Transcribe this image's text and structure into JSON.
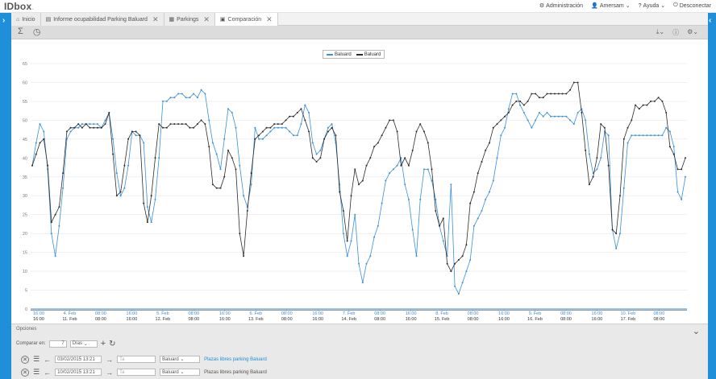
{
  "app": {
    "logo": "IDbox",
    "logo_sub": "."
  },
  "topnav": {
    "admin": "Administración",
    "user": "Amersam",
    "help": "Ayuda",
    "logout": "Desconectar"
  },
  "tabs": [
    {
      "label": "Inicio",
      "icon": "home-icon"
    },
    {
      "label": "Informe ocupabilidad Parking Baluard",
      "icon": "report-icon"
    },
    {
      "label": "Parkings",
      "icon": "grid-icon"
    },
    {
      "label": "Comparación",
      "icon": "chart-icon"
    }
  ],
  "toolbar": {
    "sum": "Σ",
    "clock": "◷",
    "download": "⤓",
    "info": "ⓘ",
    "settings": "⚙"
  },
  "options": {
    "title": "Opciones",
    "compare_label": "Comparar en:",
    "compare_value": "7",
    "compare_unit": "Días",
    "rows": [
      {
        "date": "03/02/2015 13:21",
        "to": "Ta",
        "source": "Baluard",
        "desc": "Plazas libres parking Baluard",
        "color": "#1e8fd8"
      },
      {
        "date": "10/02/2015 13:21",
        "to": "Ta",
        "source": "Baluard",
        "desc": "Plazas libres parking Baluard",
        "color": "#333333"
      }
    ]
  },
  "chart_data": {
    "type": "line",
    "ylim": [
      0,
      65
    ],
    "yticks": [
      0,
      5,
      10,
      15,
      20,
      25,
      30,
      35,
      40,
      45,
      50,
      55,
      60,
      65
    ],
    "legend_position": "top-center",
    "x_ticks_top": [
      "16:00",
      "4. Feb",
      "08:00",
      "16:00",
      "5. Feb",
      "08:00",
      "16:00",
      "6. Feb",
      "08:00",
      "16:00",
      "7. Feb",
      "08:00",
      "16:00",
      "8. Feb",
      "08:00",
      "16:00",
      "9. Feb",
      "08:00",
      "16:00",
      "10. Feb",
      "08:00"
    ],
    "x_ticks_bottom": [
      "16:00",
      "11. Feb",
      "08:00",
      "16:00",
      "12. Feb",
      "08:00",
      "16:00",
      "13. Feb",
      "08:00",
      "16:00",
      "14. Feb",
      "08:00",
      "16:00",
      "15. Feb",
      "08:00",
      "16:00",
      "16. Feb",
      "08:00",
      "16:00",
      "17. Feb",
      "08:00"
    ],
    "series": [
      {
        "name": "Baluard",
        "color": "#3a8fd9",
        "values": [
          38,
          44,
          49,
          47,
          37,
          20,
          14,
          22,
          32,
          45,
          47,
          48,
          48,
          49,
          49,
          49,
          49,
          49,
          48,
          50,
          52,
          45,
          36,
          30,
          32,
          38,
          47,
          46,
          46,
          44,
          27,
          23,
          29,
          40,
          55,
          55,
          56,
          56,
          57,
          57,
          56,
          56,
          57,
          56,
          58,
          57,
          50,
          44,
          41,
          37,
          45,
          53,
          52,
          48,
          38,
          30,
          27,
          33,
          48,
          45,
          45,
          46,
          47,
          48,
          48,
          48,
          48,
          47,
          46,
          46,
          49,
          54,
          52,
          44,
          41,
          42,
          45,
          48,
          49,
          44,
          33,
          20,
          14,
          18,
          25,
          12,
          7,
          12,
          14,
          19,
          22,
          28,
          34,
          36,
          37,
          38,
          40,
          33,
          29,
          21,
          14,
          29,
          37,
          37,
          34,
          29,
          22,
          18,
          14,
          33,
          6,
          4,
          7,
          10,
          13,
          22,
          24,
          26,
          29,
          31,
          34,
          40,
          46,
          48,
          53,
          57,
          57,
          54,
          52,
          50,
          48,
          50,
          52,
          51,
          52,
          51,
          51,
          51,
          51,
          51,
          50,
          49,
          52,
          53,
          50,
          41,
          36,
          37,
          40,
          47,
          46,
          21,
          16,
          20,
          32,
          44,
          46,
          46,
          46,
          46,
          46,
          46,
          46,
          46,
          46,
          48,
          47,
          43,
          31,
          29,
          35
        ]
      },
      {
        "name": "Baluard",
        "color": "#2b2b2b",
        "values": [
          38,
          41,
          44,
          45,
          38,
          23,
          25,
          27,
          36,
          47,
          48,
          48,
          49,
          48,
          49,
          48,
          48,
          48,
          48,
          49,
          52,
          41,
          30,
          31,
          38,
          45,
          47,
          47,
          46,
          28,
          23,
          30,
          40,
          49,
          48,
          48,
          49,
          49,
          49,
          49,
          49,
          48,
          48,
          49,
          50,
          49,
          43,
          33,
          32,
          32,
          35,
          42,
          40,
          37,
          20,
          14,
          26,
          36,
          45,
          46,
          47,
          48,
          48,
          49,
          49,
          49,
          50,
          51,
          51,
          52,
          53,
          50,
          47,
          40,
          39,
          40,
          45,
          47,
          48,
          46,
          31,
          26,
          18,
          30,
          37,
          33,
          34,
          38,
          40,
          43,
          44,
          46,
          48,
          50,
          50,
          47,
          38,
          40,
          38,
          42,
          47,
          49,
          47,
          44,
          37,
          26,
          22,
          24,
          12,
          10,
          12,
          13,
          14,
          17,
          28,
          31,
          36,
          39,
          42,
          44,
          48,
          49,
          50,
          51,
          52,
          54,
          55,
          55,
          54,
          55,
          57,
          57,
          56,
          56,
          57,
          57,
          57,
          57,
          57,
          57,
          58,
          60,
          60,
          52,
          42,
          33,
          35,
          40,
          49,
          48,
          38,
          21,
          20,
          30,
          45,
          48,
          50,
          54,
          53,
          54,
          54,
          55,
          55,
          56,
          55,
          52,
          43,
          41,
          37,
          37,
          40
        ]
      }
    ]
  }
}
